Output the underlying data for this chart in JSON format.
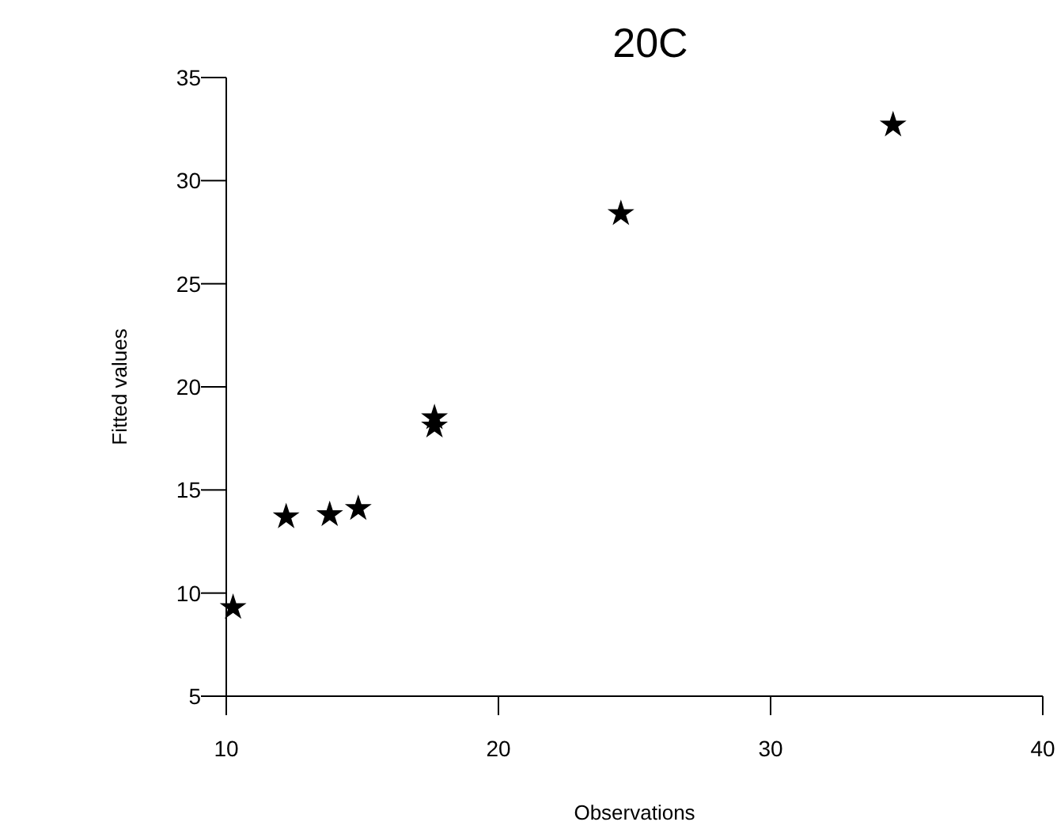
{
  "chart_data": {
    "type": "scatter",
    "title": "20C",
    "xlabel": "Observations",
    "ylabel": "Fitted values",
    "x": [
      10.25,
      12.2,
      13.8,
      14.85,
      17.65,
      17.65,
      24.5,
      34.5
    ],
    "values": [
      9.3,
      13.7,
      13.8,
      14.1,
      18.5,
      18.1,
      28.4,
      32.7
    ],
    "color": "#000000",
    "marker": "star",
    "grid": false,
    "xlim": [
      10,
      40
    ],
    "xticks": [
      10,
      20,
      30,
      40
    ],
    "ylim": [
      5,
      35
    ],
    "yticks": [
      5,
      10,
      15,
      20,
      25,
      30,
      35
    ]
  }
}
